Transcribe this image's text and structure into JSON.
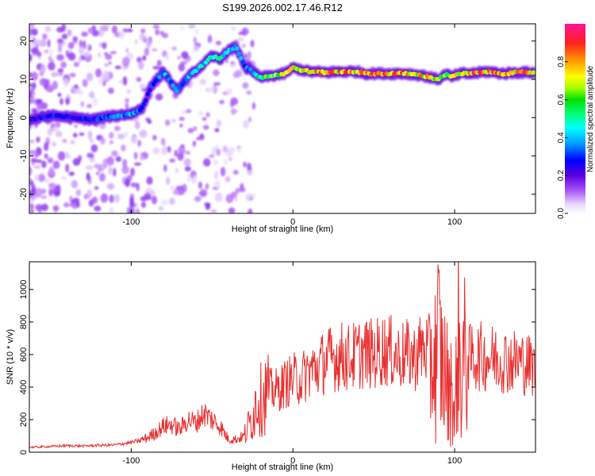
{
  "title": "S199.2026.002.17.46.R12",
  "chart_data": [
    {
      "type": "heatmap",
      "xlabel": "Height of straight line (km)",
      "ylabel": "Frequency (Hz)",
      "xlim": [
        -163,
        150
      ],
      "ylim": [
        -25,
        24.5
      ],
      "xticks": [
        -100,
        0,
        100
      ],
      "xtick_labels": [
        "-100",
        "0",
        "100"
      ],
      "yticks": [
        -20,
        -10,
        0,
        10,
        20
      ],
      "ytick_labels": [
        "-20",
        "-10",
        "0",
        "10",
        "20"
      ],
      "colorbar": {
        "label": "Normalized spectral amplitude",
        "range": [
          0,
          1
        ],
        "ticks": [
          0,
          0.2,
          0.4,
          0.6,
          0.8
        ],
        "tick_labels": [
          "0.0",
          "0.2",
          "0.4",
          "0.6",
          "0.8"
        ]
      },
      "ridge": {
        "x": [
          -163,
          -150,
          -140,
          -125,
          -110,
          -100,
          -93,
          -88,
          -80,
          -72,
          -65,
          -58,
          -50,
          -45,
          -40,
          -35,
          -30,
          -25,
          -20,
          -12,
          -5,
          0,
          5,
          10,
          20,
          30,
          40,
          45,
          50,
          60,
          70,
          80,
          85,
          90,
          95,
          98,
          100,
          105,
          110,
          120,
          130,
          140,
          150
        ],
        "y": [
          -0.5,
          0.5,
          0.2,
          -0.5,
          0.5,
          1.0,
          2.5,
          8.0,
          12.0,
          7.0,
          10.5,
          13.0,
          16.0,
          15.5,
          17.5,
          18.5,
          13.5,
          12.0,
          10.5,
          11.0,
          11.5,
          13.0,
          12.5,
          12.0,
          11.8,
          12.0,
          12.0,
          11.5,
          11.5,
          11.5,
          11.5,
          11.0,
          10.5,
          10.0,
          11.5,
          10.5,
          11.0,
          11.5,
          11.5,
          12.0,
          11.5,
          11.8,
          11.8
        ],
        "amplitude": [
          0.25,
          0.3,
          0.28,
          0.3,
          0.35,
          0.4,
          0.35,
          0.3,
          0.4,
          0.35,
          0.4,
          0.45,
          0.5,
          0.5,
          0.45,
          0.4,
          0.35,
          0.4,
          0.6,
          0.65,
          0.7,
          0.75,
          0.75,
          0.8,
          0.85,
          0.85,
          0.8,
          0.8,
          0.9,
          0.85,
          0.85,
          0.8,
          0.75,
          0.7,
          0.65,
          0.7,
          0.75,
          0.8,
          0.85,
          0.85,
          0.85,
          0.85,
          0.85
        ]
      }
    },
    {
      "type": "line",
      "xlabel": "Height of straight line (km)",
      "ylabel": "SNR (10 * v/v)",
      "xlim": [
        -163,
        150
      ],
      "ylim": [
        0,
        1170
      ],
      "xticks": [
        -100,
        0,
        100
      ],
      "xtick_labels": [
        "-100",
        "0",
        "100"
      ],
      "yticks": [
        0,
        200,
        400,
        600,
        800,
        1000
      ],
      "ytick_labels": [
        "0",
        "200",
        "400",
        "600",
        "800",
        "1000"
      ],
      "series": [
        {
          "name": "SNR",
          "color": "#e83030",
          "x": [
            -163,
            -150,
            -140,
            -130,
            -120,
            -110,
            -100,
            -95,
            -90,
            -85,
            -80,
            -75,
            -70,
            -65,
            -60,
            -55,
            -50,
            -45,
            -40,
            -35,
            -30,
            -25,
            -22,
            -20,
            -15,
            -10,
            -5,
            0,
            5,
            10,
            15,
            20,
            25,
            30,
            35,
            40,
            45,
            50,
            55,
            60,
            65,
            70,
            75,
            78,
            80,
            85,
            88,
            90,
            92,
            95,
            97,
            98,
            100,
            102,
            104,
            105,
            107,
            110,
            115,
            120,
            125,
            130,
            135,
            140,
            145,
            150
          ],
          "y": [
            30,
            35,
            40,
            38,
            42,
            45,
            60,
            70,
            90,
            120,
            160,
            170,
            140,
            200,
            180,
            240,
            200,
            160,
            80,
            80,
            100,
            220,
            340,
            320,
            380,
            380,
            420,
            450,
            450,
            500,
            520,
            560,
            580,
            590,
            580,
            600,
            610,
            600,
            630,
            620,
            590,
            600,
            580,
            620,
            640,
            620,
            560,
            700,
            540,
            460,
            300,
            560,
            120,
            800,
            400,
            560,
            580,
            580,
            590,
            580,
            580,
            570,
            560,
            560,
            540,
            520
          ]
        }
      ]
    }
  ]
}
